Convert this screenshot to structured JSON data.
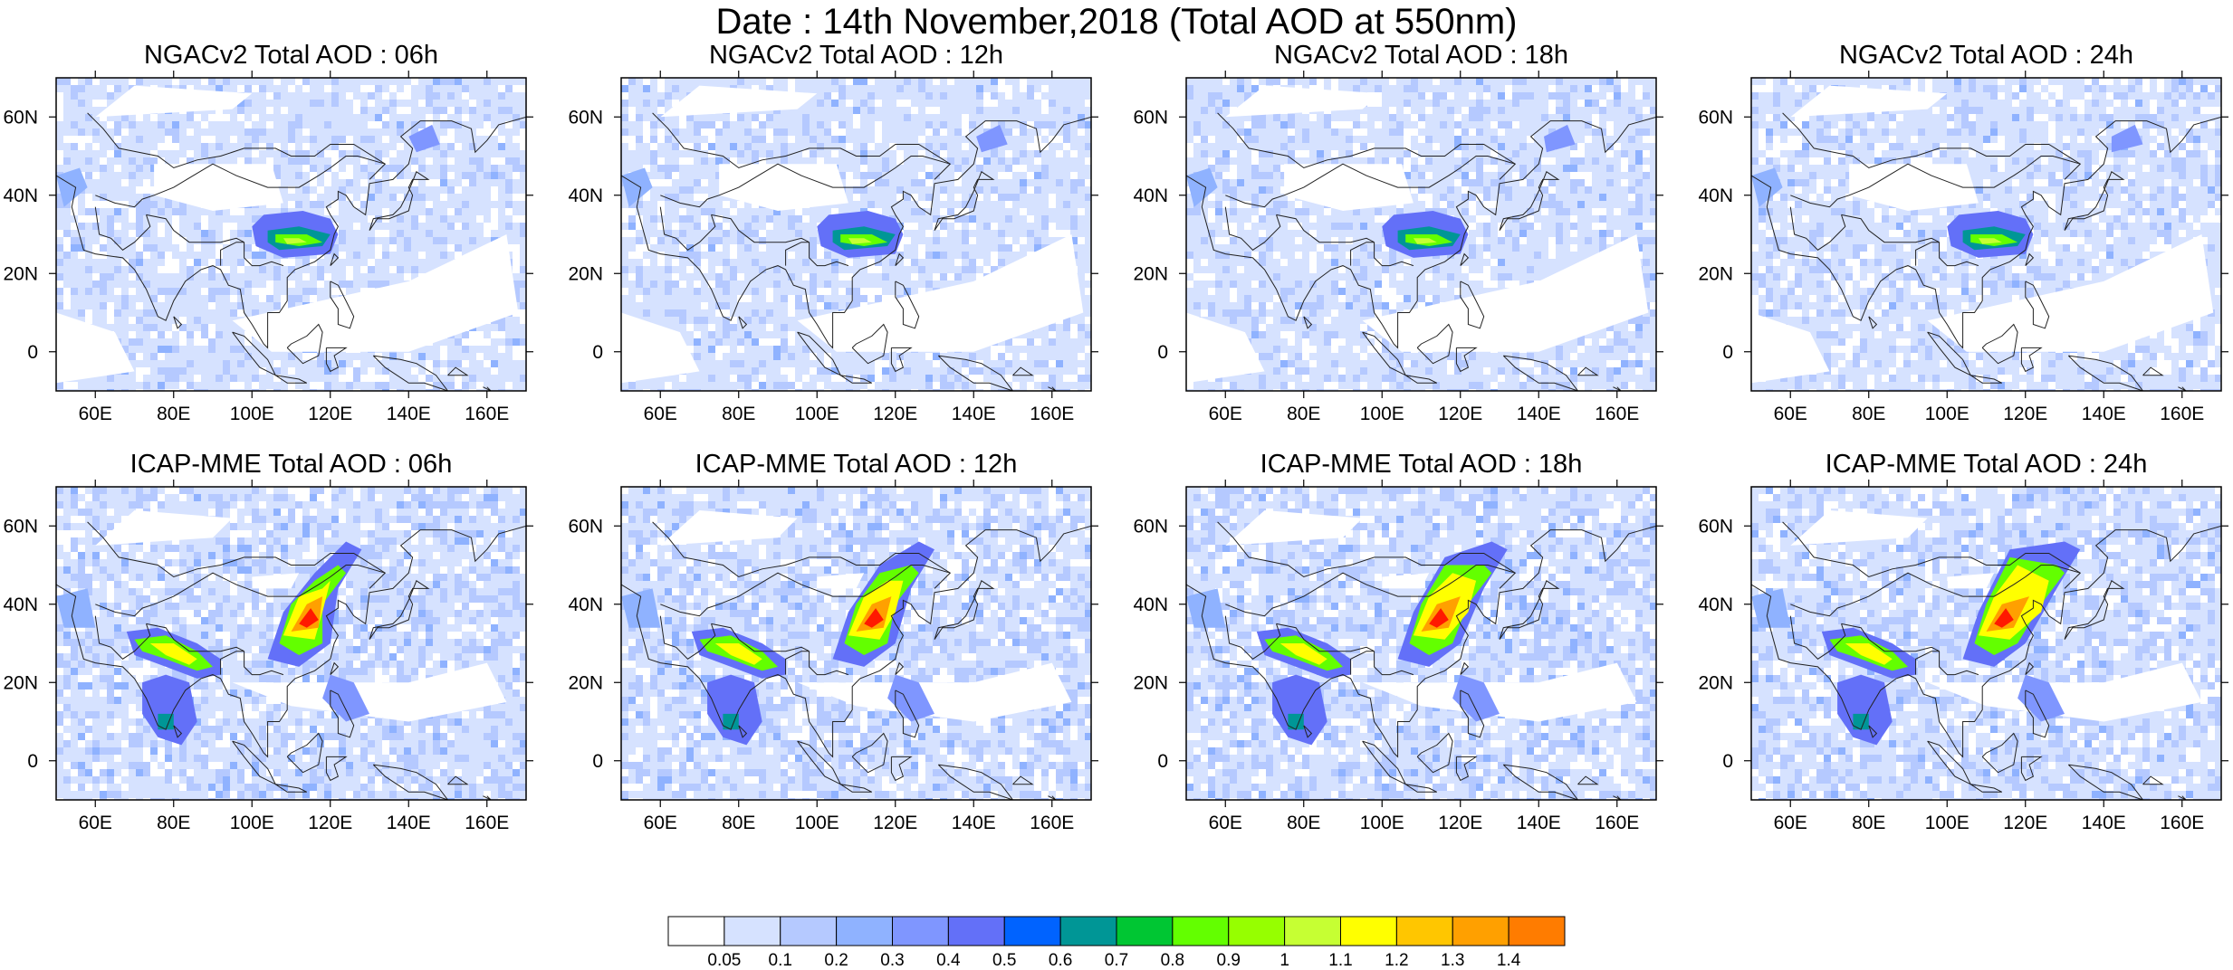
{
  "title": "Date : 14th November,2018 (Total AOD at 550nm)",
  "panels": [
    {
      "title": "NGACv2 Total AOD : 06h",
      "model": "NGACv2",
      "hour": 6
    },
    {
      "title": "NGACv2 Total AOD : 12h",
      "model": "NGACv2",
      "hour": 12
    },
    {
      "title": "NGACv2 Total AOD : 18h",
      "model": "NGACv2",
      "hour": 18
    },
    {
      "title": "NGACv2 Total AOD : 24h",
      "model": "NGACv2",
      "hour": 24
    },
    {
      "title": "ICAP-MME Total AOD : 06h",
      "model": "ICAP-MME",
      "hour": 6
    },
    {
      "title": "ICAP-MME Total AOD : 12h",
      "model": "ICAP-MME",
      "hour": 12
    },
    {
      "title": "ICAP-MME Total AOD : 18h",
      "model": "ICAP-MME",
      "hour": 18
    },
    {
      "title": "ICAP-MME Total AOD : 24h",
      "model": "ICAP-MME",
      "hour": 24
    }
  ],
  "map": {
    "lon_range": [
      50,
      170
    ],
    "lat_range": [
      -10,
      70
    ],
    "lon_ticks": [
      "60E",
      "80E",
      "100E",
      "120E",
      "140E",
      "160E"
    ],
    "lon_tick_values": [
      60,
      80,
      100,
      120,
      140,
      160
    ],
    "lat_ticks": [
      "0",
      "20N",
      "40N",
      "60N"
    ],
    "lat_tick_values": [
      0,
      20,
      40,
      60
    ]
  },
  "colorbar": {
    "labels": [
      "0.05",
      "0.1",
      "0.2",
      "0.3",
      "0.4",
      "0.5",
      "0.6",
      "0.7",
      "0.8",
      "0.9",
      "1",
      "1.1",
      "1.2",
      "1.3",
      "1.4"
    ],
    "colors": [
      "#ffffff",
      "#d6e2ff",
      "#b5c9ff",
      "#8fb2ff",
      "#7f96ff",
      "#6370f8",
      "#0063ff",
      "#009696",
      "#00c633",
      "#63ff00",
      "#96ff00",
      "#c6ff33",
      "#ffff00",
      "#ffc600",
      "#ffa000",
      "#ff7c00",
      "#ff1900"
    ]
  }
}
